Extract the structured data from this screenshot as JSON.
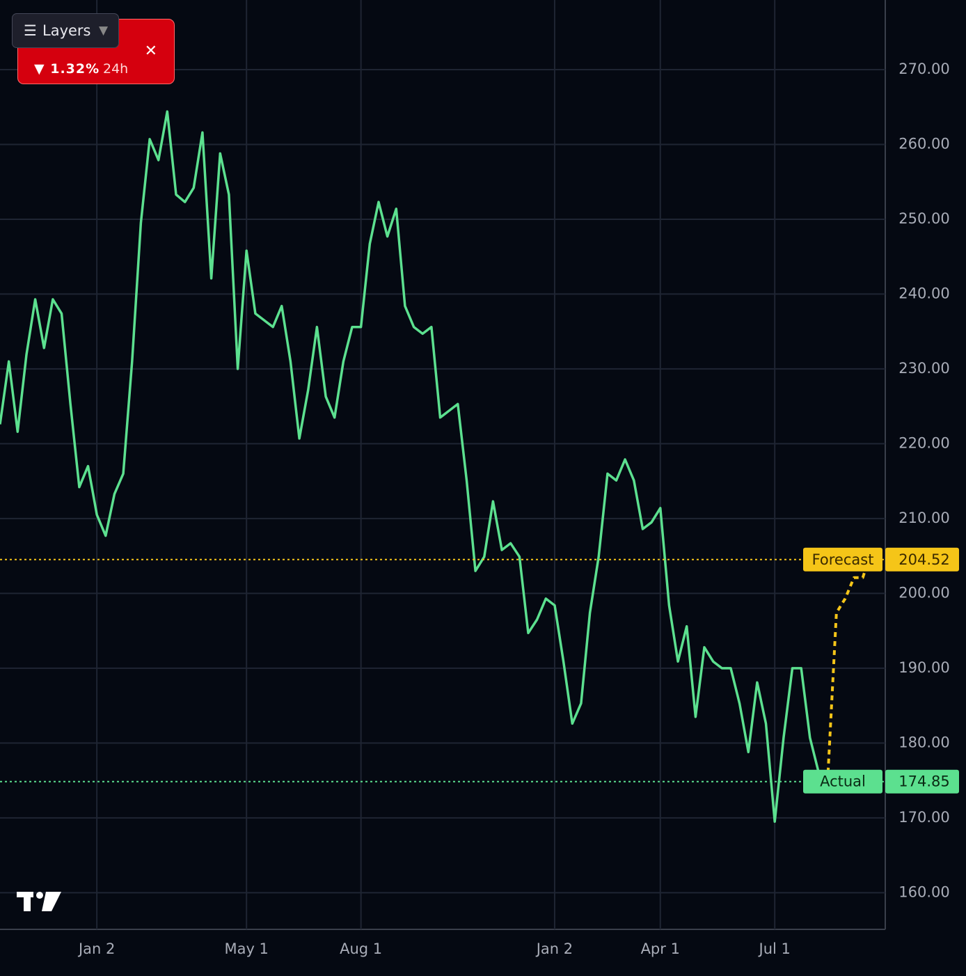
{
  "chart_data": {
    "type": "line",
    "categories": [
      null,
      null,
      null,
      null,
      null,
      null,
      null,
      null,
      null,
      null,
      null,
      "Jan 2",
      null,
      null,
      null,
      null,
      null,
      null,
      null,
      null,
      null,
      null,
      null,
      null,
      null,
      null,
      null,
      null,
      "May 1",
      null,
      null,
      null,
      null,
      null,
      null,
      null,
      null,
      null,
      null,
      null,
      null,
      "Aug 1",
      null,
      null,
      null,
      null,
      null,
      null,
      null,
      null,
      null,
      null,
      null,
      null,
      null,
      null,
      null,
      null,
      null,
      null,
      null,
      null,
      null,
      "Jan 2",
      null,
      null,
      null,
      null,
      null,
      null,
      null,
      null,
      null,
      null,
      null,
      "Apr 1",
      null,
      null,
      null,
      null,
      null,
      null,
      null,
      null,
      null,
      null,
      null,
      null,
      "Jul 1",
      null,
      null,
      null,
      null,
      null,
      null,
      null,
      null,
      null,
      null,
      null,
      null
    ],
    "series": [
      {
        "color": "#5ce08f",
        "values": [
          222.6,
          231,
          221.6,
          231.9,
          239.3,
          232.8,
          239.3,
          237.4,
          225.3,
          214.2,
          217,
          210.5,
          207.7,
          213.3,
          216,
          231,
          249.5,
          260.7,
          257.9,
          264.4,
          253.3,
          252.3,
          254.2,
          261.6,
          242.1,
          258.8,
          253.3,
          230,
          245.8,
          237.4,
          236.5,
          235.6,
          238.4,
          231,
          220.7,
          227.2,
          235.6,
          226.3,
          223.5,
          231,
          235.6,
          235.6,
          246.7,
          252.3,
          247.7,
          251.4,
          238.4,
          235.6,
          234.7,
          235.6,
          223.5,
          224.4,
          225.3,
          215.1,
          203,
          204.9,
          212.3,
          205.8,
          206.7,
          204.9,
          194.7,
          196.5,
          199.3,
          198.4,
          190.9,
          182.6,
          185.3,
          197.4,
          204.9,
          216,
          215.1,
          217.9,
          215.1,
          208.6,
          209.5,
          211.4,
          198.4,
          190.9,
          195.6,
          183.5,
          192.8,
          190.9,
          190,
          190,
          185.3,
          178.8,
          188.1,
          182.6,
          169.5,
          180.7,
          190,
          190,
          180.7,
          176,
          174.85,
          null,
          null,
          null,
          null,
          null,
          null
        ]
      },
      {
        "color": "#f5c518",
        "dashed": true,
        "values": [
          null,
          null,
          null,
          null,
          null,
          null,
          null,
          null,
          null,
          null,
          null,
          null,
          null,
          null,
          null,
          null,
          null,
          null,
          null,
          null,
          null,
          null,
          null,
          null,
          null,
          null,
          null,
          null,
          null,
          null,
          null,
          null,
          null,
          null,
          null,
          null,
          null,
          null,
          null,
          null,
          null,
          null,
          null,
          null,
          null,
          null,
          null,
          null,
          null,
          null,
          null,
          null,
          null,
          null,
          null,
          null,
          null,
          null,
          null,
          null,
          null,
          null,
          null,
          null,
          null,
          null,
          null,
          null,
          null,
          null,
          null,
          null,
          null,
          null,
          null,
          null,
          null,
          null,
          null,
          null,
          null,
          null,
          null,
          null,
          null,
          null,
          null,
          null,
          null,
          null,
          null,
          null,
          null,
          null,
          174.85,
          197.4,
          199.3,
          202.1,
          202.1,
          205.8,
          204.52
        ]
      }
    ],
    "price_lines": [
      {
        "name": "Forecast",
        "value": 204.52,
        "color": "#f5c518",
        "text_color": "#3a2a00"
      },
      {
        "name": "Actual",
        "value": 174.85,
        "color": "#5ce08f",
        "text_color": "#0a2a14"
      }
    ],
    "ylim": [
      155.1,
      279.3
    ],
    "yticks": [
      {
        "value": 160,
        "label": "160.00"
      },
      {
        "value": 170,
        "label": "170.00"
      },
      {
        "value": 180,
        "label": "180.00"
      },
      {
        "value": 190,
        "label": "190.00"
      },
      {
        "value": 200,
        "label": "200.00"
      },
      {
        "value": 210,
        "label": "210.00"
      },
      {
        "value": 220,
        "label": "220.00"
      },
      {
        "value": 230,
        "label": "230.00"
      },
      {
        "value": 240,
        "label": "240.00"
      },
      {
        "value": 250,
        "label": "250.00"
      },
      {
        "value": 260,
        "label": "260.00"
      },
      {
        "value": 270,
        "label": "270.00"
      }
    ],
    "grid": true
  },
  "ui": {
    "layers_button": "Layers",
    "change_badge": {
      "change": "▼ 1.32%",
      "period": "24h"
    }
  }
}
